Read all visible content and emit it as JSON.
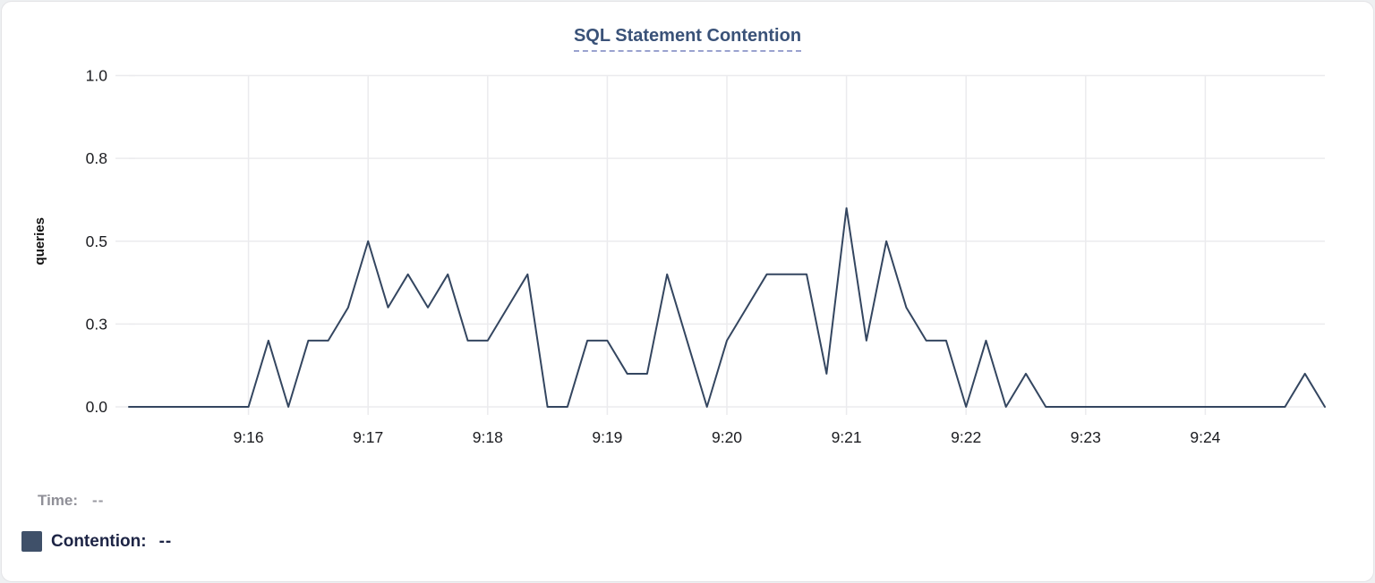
{
  "title": "SQL Statement Contention",
  "tooltip": {
    "time_label": "Time:",
    "time_value": "--",
    "series_label": "Contention:",
    "series_value": "--"
  },
  "colors": {
    "line": "#344660",
    "swatch": "#3f5069",
    "title": "#3a5278",
    "title_underline": "#9aa2cf",
    "grid": "#ebebee",
    "axis_text": "#1b1c20",
    "ylabel_text": "#111111",
    "muted_text": "#8f8f97",
    "legend_text": "#1d2445"
  },
  "chart_data": {
    "type": "line",
    "title": "SQL Statement Contention",
    "xlabel": "",
    "ylabel": "queries",
    "ylim": [
      0,
      1.0
    ],
    "grid": true,
    "legend_position": "bottom-left",
    "yticks": {
      "values": [
        0,
        0.25,
        0.5,
        0.75,
        1.0
      ],
      "labels": [
        "0.0",
        "0.3",
        "0.5",
        "0.8",
        "1.0"
      ]
    },
    "x_ticks": [
      "9:16",
      "9:17",
      "9:18",
      "9:19",
      "9:20",
      "9:21",
      "9:22",
      "9:23",
      "9:24"
    ],
    "x_start": "9:15:00",
    "x_end": "9:25:00",
    "series": [
      {
        "name": "Contention",
        "unit": "queries",
        "interval_seconds": 10,
        "start_time": "9:15:00",
        "values": [
          0,
          0,
          0,
          0,
          0,
          0,
          0,
          0.2,
          0,
          0.2,
          0.2,
          0.3,
          0.5,
          0.3,
          0.4,
          0.3,
          0.4,
          0.2,
          0.2,
          0.3,
          0.4,
          0,
          0,
          0.2,
          0.2,
          0.1,
          0.1,
          0.4,
          0.2,
          0,
          0.2,
          0.3,
          0.4,
          0.4,
          0.4,
          0.1,
          0.6,
          0.2,
          0.5,
          0.3,
          0.2,
          0.2,
          0,
          0.2,
          0,
          0.1,
          0,
          0,
          0,
          0,
          0,
          0,
          0,
          0,
          0,
          0,
          0,
          0,
          0,
          0.1,
          0
        ]
      }
    ]
  }
}
